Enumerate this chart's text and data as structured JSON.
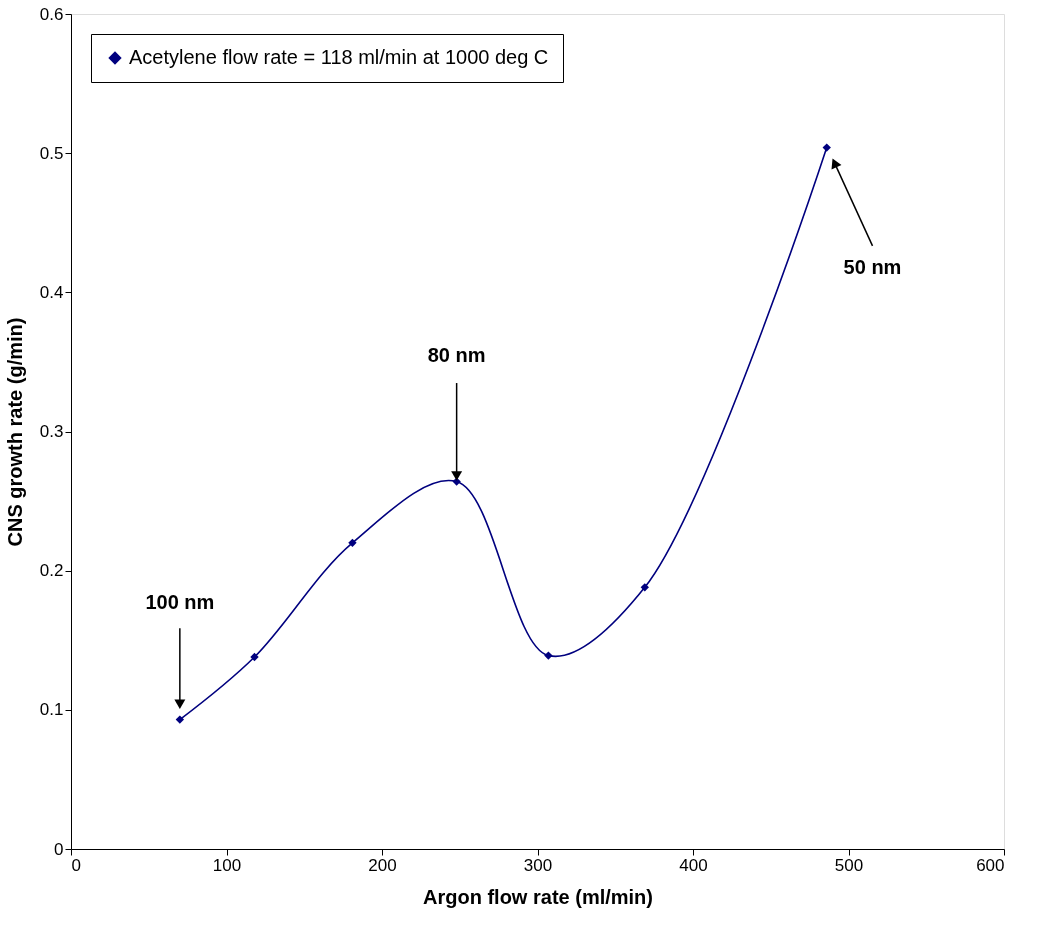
{
  "chart_data": {
    "type": "line",
    "xlabel": "Argon flow rate (ml/min)",
    "ylabel": "CNS growth rate (g/min)",
    "series": [
      {
        "name": "Acetylene flow rate = 118 ml/min at 1000 deg C",
        "color": "#00007f",
        "x": [
          70,
          118,
          181,
          248,
          307,
          369,
          486
        ],
        "values": [
          0.093,
          0.138,
          0.22,
          0.264,
          0.139,
          0.188,
          0.504
        ]
      }
    ],
    "xlim": [
      0,
      600
    ],
    "xticks": [
      0,
      100,
      200,
      300,
      400,
      500,
      600
    ],
    "ylim": [
      0,
      0.6
    ],
    "yticks": [
      0,
      {
        "value": 0.1,
        "label": "0.1"
      },
      {
        "value": 0.2,
        "label": "0.2"
      },
      {
        "value": 0.3,
        "label": "0.3"
      },
      {
        "value": 0.4,
        "label": "0.4"
      },
      {
        "value": 0.5,
        "label": "0.5"
      },
      {
        "value": 0.6,
        "label": "0.6"
      }
    ],
    "annotations": [
      {
        "text": "100 nm",
        "x": 70,
        "y": 0.104
      },
      {
        "text": "80 nm",
        "x": 248,
        "y": 0.268
      },
      {
        "text": "50 nm",
        "x": 491,
        "y": 0.493
      }
    ],
    "marker": "diamond",
    "line_style": "solid",
    "legend": "top left",
    "grid": false
  }
}
